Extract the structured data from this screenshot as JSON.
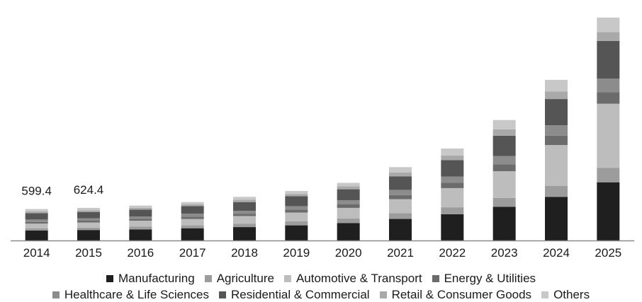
{
  "chart_data": {
    "type": "bar",
    "stacked": true,
    "categories": [
      "2014",
      "2015",
      "2016",
      "2017",
      "2018",
      "2019",
      "2020",
      "2021",
      "2022",
      "2023",
      "2024",
      "2025"
    ],
    "series": [
      {
        "name": "Manufacturing",
        "color": "#1f1f1f",
        "values": [
          17,
          18,
          19,
          21,
          23,
          26,
          30,
          37,
          45,
          58,
          75,
          100
        ]
      },
      {
        "name": "Agriculture",
        "color": "#9c9c9c",
        "values": [
          4,
          4,
          5,
          5,
          6,
          7,
          8,
          10,
          12,
          15,
          19,
          25
        ]
      },
      {
        "name": "Automotive & Transport",
        "color": "#bdbdbd",
        "values": [
          8,
          9,
          10,
          11,
          13,
          15,
          18,
          24,
          33,
          46,
          70,
          110
        ]
      },
      {
        "name": "Energy & Utilities",
        "color": "#6b6b6b",
        "values": [
          3,
          3,
          3,
          4,
          4,
          5,
          6,
          7,
          9,
          12,
          16,
          20
        ]
      },
      {
        "name": "Healthcare & Life Sciences",
        "color": "#8c8c8c",
        "values": [
          4,
          4,
          4,
          5,
          5,
          6,
          7,
          9,
          11,
          14,
          18,
          23
        ]
      },
      {
        "name": "Residential & Commercial",
        "color": "#555555",
        "values": [
          11,
          11,
          12,
          13,
          15,
          17,
          19,
          23,
          28,
          35,
          45,
          65
        ]
      },
      {
        "name": "Retail & Consumer Goods",
        "color": "#a9a9a9",
        "values": [
          3,
          3,
          3,
          3,
          4,
          4,
          5,
          7,
          8,
          11,
          13,
          15
        ]
      },
      {
        "name": "Others",
        "color": "#c8c8c8",
        "values": [
          4,
          4,
          4,
          4,
          5,
          5,
          6,
          9,
          12,
          16,
          20,
          25
        ]
      }
    ],
    "data_labels": [
      {
        "category": "2014",
        "text": "599.4"
      },
      {
        "category": "2015",
        "text": "624.4"
      }
    ],
    "xlabel": "",
    "ylabel": "",
    "ylim": [
      0,
      395
    ],
    "grid": false,
    "legend_position": "bottom"
  }
}
